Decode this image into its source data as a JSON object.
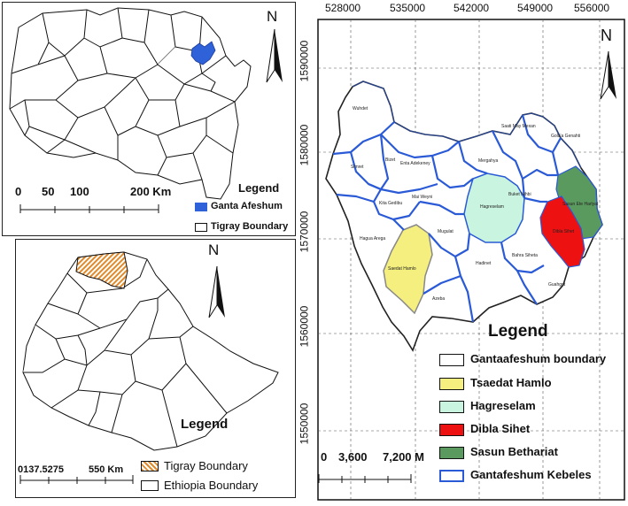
{
  "top_map": {
    "north": "N",
    "legend_title": "Legend",
    "legend_items": [
      {
        "label": "Ganta Afeshum",
        "color": "#2f62d8"
      },
      {
        "label": "Tigray Boundary",
        "color": "#ffffff"
      }
    ],
    "scale_labels": [
      "0",
      "50",
      "100",
      "200 Km"
    ]
  },
  "bottom_map": {
    "north": "N",
    "legend_title": "Legend",
    "legend_items": [
      {
        "label": "Tigray Boundary",
        "pattern": "orange-hatch"
      },
      {
        "label": "Ethiopia Boundary",
        "color": "#ffffff"
      }
    ],
    "scale_labels": [
      "0137.5275",
      "550 Km"
    ]
  },
  "main_map": {
    "north": "N",
    "x_ticks": [
      "528000",
      "535000",
      "542000",
      "549000",
      "556000"
    ],
    "y_ticks": [
      "1590000",
      "1580000",
      "1570000",
      "1560000",
      "1550000"
    ],
    "kebeles": [
      "Wuhdet",
      "Saati May Mexan",
      "Gola'a Genahti",
      "Simret",
      "Bizet",
      "Enta Adekeney",
      "Mergahya",
      "Buket Nihbi",
      "Mai Weyni",
      "Kita Gedibu",
      "Hagreselam",
      "Sasun Ete Harlyat",
      "Dibla Sihet",
      "Hagua Arega",
      "Mugulat",
      "Saedat Hamlo",
      "Bahra Siheta",
      "Hadinet",
      "Guahgot",
      "Azeba"
    ],
    "legend_title": "Legend",
    "legend_items": [
      {
        "label": "Gantaafeshum boundary",
        "color": "#ffffff",
        "border": "#111111"
      },
      {
        "label": "Tsaedat Hamlo",
        "color": "#f4ef7e",
        "border": "#111111"
      },
      {
        "label": "Hagreselam",
        "color": "#c9f4e0",
        "border": "#111111"
      },
      {
        "label": "Dibla Sihet",
        "color": "#ee1111",
        "border": "#111111"
      },
      {
        "label": "Sasun Bethariat",
        "color": "#5a9a5e",
        "border": "#111111"
      },
      {
        "label": "Gantafeshum Kebeles",
        "color": "#ffffff",
        "border": "#2a5ad6"
      }
    ],
    "scale_labels": [
      "0",
      "3,600",
      "7,200 M"
    ]
  }
}
